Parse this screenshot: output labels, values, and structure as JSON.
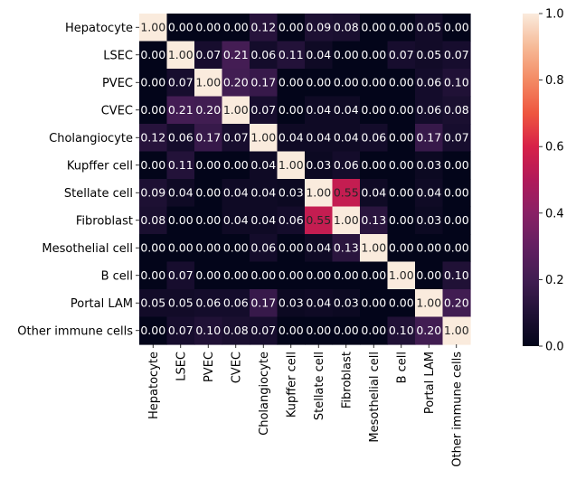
{
  "chart_data": {
    "type": "heatmap",
    "row_labels": [
      "Hepatocyte",
      "LSEC",
      "PVEC",
      "CVEC",
      "Cholangiocyte",
      "Kupffer cell",
      "Stellate cell",
      "Fibroblast",
      "Mesothelial cell",
      "B cell",
      "Portal LAM",
      "Other immune cells"
    ],
    "col_labels": [
      "Hepatocyte",
      "LSEC",
      "PVEC",
      "CVEC",
      "Cholangiocyte",
      "Kupffer cell",
      "Stellate cell",
      "Fibroblast",
      "Mesothelial cell",
      "B cell",
      "Portal LAM",
      "Other immune cells"
    ],
    "values": [
      [
        1.0,
        0.0,
        0.0,
        0.0,
        0.12,
        0.0,
        0.09,
        0.08,
        0.0,
        0.0,
        0.05,
        0.0
      ],
      [
        0.0,
        1.0,
        0.07,
        0.21,
        0.06,
        0.11,
        0.04,
        0.0,
        0.0,
        0.07,
        0.05,
        0.07
      ],
      [
        0.0,
        0.07,
        1.0,
        0.2,
        0.17,
        0.0,
        0.0,
        0.0,
        0.0,
        0.0,
        0.06,
        0.1
      ],
      [
        0.0,
        0.21,
        0.2,
        1.0,
        0.07,
        0.0,
        0.04,
        0.04,
        0.0,
        0.0,
        0.06,
        0.08
      ],
      [
        0.12,
        0.06,
        0.17,
        0.07,
        1.0,
        0.04,
        0.04,
        0.04,
        0.06,
        0.0,
        0.17,
        0.07
      ],
      [
        0.0,
        0.11,
        0.0,
        0.0,
        0.04,
        1.0,
        0.03,
        0.06,
        0.0,
        0.0,
        0.03,
        0.0
      ],
      [
        0.09,
        0.04,
        0.0,
        0.04,
        0.04,
        0.03,
        1.0,
        0.55,
        0.04,
        0.0,
        0.04,
        0.0
      ],
      [
        0.08,
        0.0,
        0.0,
        0.04,
        0.04,
        0.06,
        0.55,
        1.0,
        0.13,
        0.0,
        0.03,
        0.0
      ],
      [
        0.0,
        0.0,
        0.0,
        0.0,
        0.06,
        0.0,
        0.04,
        0.13,
        1.0,
        0.0,
        0.0,
        0.0
      ],
      [
        0.0,
        0.07,
        0.0,
        0.0,
        0.0,
        0.0,
        0.0,
        0.0,
        0.0,
        1.0,
        0.0,
        0.1
      ],
      [
        0.05,
        0.05,
        0.06,
        0.06,
        0.17,
        0.03,
        0.04,
        0.03,
        0.0,
        0.0,
        1.0,
        0.2
      ],
      [
        0.0,
        0.07,
        0.1,
        0.08,
        0.07,
        0.0,
        0.0,
        0.0,
        0.0,
        0.1,
        0.2,
        1.0
      ]
    ],
    "vmin": 0.0,
    "vmax": 1.0,
    "colormap": "rocket",
    "colorbar_ticks": [
      "0.0",
      "0.2",
      "0.4",
      "0.6",
      "0.8",
      "1.0"
    ],
    "annotations": true,
    "grid": false
  }
}
